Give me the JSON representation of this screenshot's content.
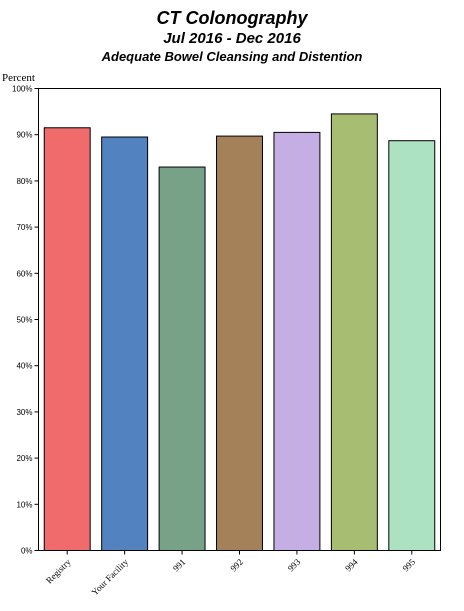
{
  "chart_data": {
    "type": "bar",
    "title": "CT Colonography",
    "subtitle": "Jul 2016 - Dec 2016",
    "subtitle2": "Adequate Bowel Cleansing and Distention",
    "ylabel": "Percent",
    "xlabel": "",
    "ylim": [
      0,
      100
    ],
    "yticks": [
      "0%",
      "10%",
      "20%",
      "30%",
      "40%",
      "50%",
      "60%",
      "70%",
      "80%",
      "90%",
      "100%"
    ],
    "categories": [
      "Registry",
      "Your Facility",
      "991",
      "992",
      "993",
      "994",
      "995"
    ],
    "values": [
      91.5,
      89.5,
      83,
      89.7,
      90.5,
      94.5,
      88.7
    ],
    "colors": [
      "#f06c6c",
      "#5282bf",
      "#77a287",
      "#a58159",
      "#c5aee4",
      "#a6bd72",
      "#ace1c1"
    ],
    "grid": false,
    "legend": "none"
  }
}
